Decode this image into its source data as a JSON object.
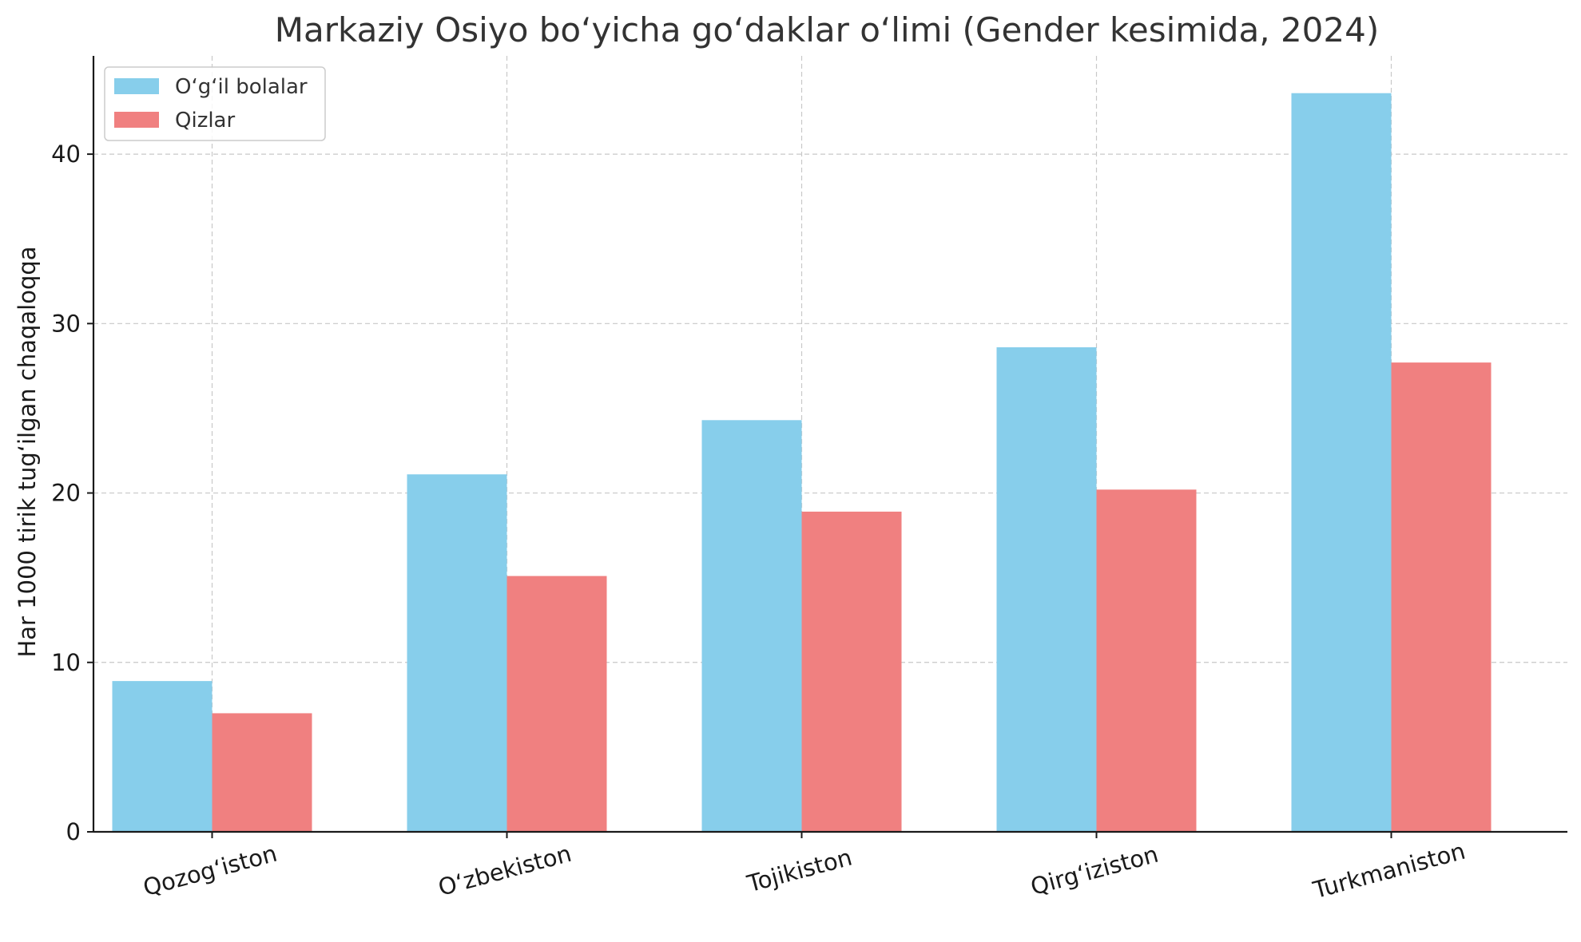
{
  "chart_data": {
    "type": "bar",
    "title": "Markaziy Osiyo bo‘yicha go‘daklar o‘limi (Gender kesimida, 2024)",
    "xlabel": "",
    "ylabel": "Har 1000 tirik tug‘ilgan chaqaloqqa",
    "categories": [
      "Qozog‘iston",
      "O‘zbekiston",
      "Tojikiston",
      "Qirg‘iziston",
      "Turkmaniston"
    ],
    "series": [
      {
        "name": "O‘g‘il bolalar",
        "color": "#87CEEB",
        "values": [
          8.9,
          21.1,
          24.3,
          28.6,
          43.6
        ]
      },
      {
        "name": "Qizlar",
        "color": "#F08080",
        "values": [
          7.0,
          15.1,
          18.9,
          20.2,
          27.7
        ]
      }
    ],
    "ylim": [
      0,
      45.8
    ],
    "yticks": [
      0,
      10,
      20,
      30,
      40
    ],
    "grid": true,
    "legend_position": "top-left"
  }
}
